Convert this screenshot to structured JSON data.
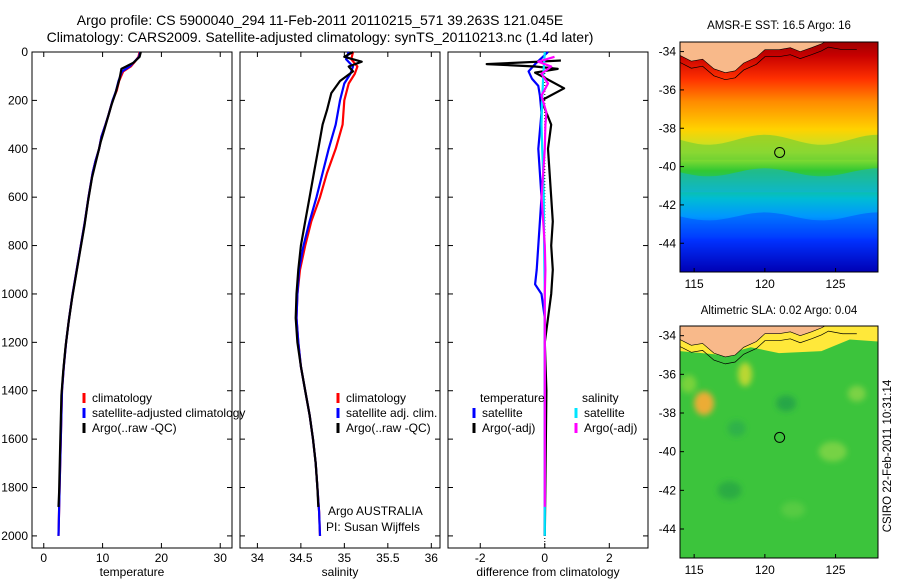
{
  "header": {
    "title_line1": "Argo profile: CS 5900040_294 11-Feb-2011 20110215_571 39.263S 121.045E",
    "title_line2": "Climatology: CARS2009. Satellite-adjusted climatology: synTS_20110213.nc (1.4d later)"
  },
  "footer": {
    "stamp": "CSIRO 22-Feb-2011 10:31:14"
  },
  "colors": {
    "climatology": "#ff0000",
    "satellite": "#0000ff",
    "argo": "#000000",
    "satellite_diff_salinity": "#00e5ff",
    "argo_adj_salinity": "#ff00ff",
    "land": "#f8b98a"
  },
  "chart_data": [
    {
      "type": "line",
      "id": "temperature",
      "xlabel": "temperature",
      "ylabel": "",
      "xlim": [
        -2,
        32
      ],
      "ylim": [
        0,
        2050
      ],
      "x_ticks": [
        0,
        10,
        20,
        30
      ],
      "y_ticks": [
        0,
        200,
        400,
        600,
        800,
        1000,
        1200,
        1400,
        1600,
        1800,
        2000
      ],
      "legend": [
        "climatology",
        "satellite-adjusted climatology",
        "Argo(..raw -QC)"
      ],
      "series": [
        {
          "name": "climatology",
          "color": "#ff0000",
          "points": [
            [
              16.3,
              0
            ],
            [
              16.1,
              20
            ],
            [
              15.5,
              40
            ],
            [
              14.8,
              60
            ],
            [
              13.5,
              80
            ],
            [
              12.8,
              120
            ],
            [
              12.4,
              160
            ],
            [
              11.7,
              200
            ],
            [
              11.0,
              260
            ],
            [
              10.5,
              300
            ],
            [
              9.8,
              350
            ],
            [
              9.4,
              400
            ],
            [
              8.8,
              450
            ],
            [
              8.3,
              500
            ],
            [
              7.6,
              600
            ],
            [
              7.0,
              700
            ],
            [
              6.3,
              800
            ],
            [
              5.6,
              900
            ],
            [
              4.9,
              1000
            ],
            [
              4.3,
              1100
            ],
            [
              3.8,
              1200
            ],
            [
              3.4,
              1300
            ],
            [
              3.1,
              1400
            ],
            [
              2.9,
              1600
            ],
            [
              2.7,
              1800
            ],
            [
              2.5,
              2000
            ]
          ]
        },
        {
          "name": "satellite-adjusted climatology",
          "color": "#0000ff",
          "points": [
            [
              16.4,
              0
            ],
            [
              16.2,
              20
            ],
            [
              15.4,
              40
            ],
            [
              14.6,
              60
            ],
            [
              13.3,
              80
            ],
            [
              12.7,
              120
            ],
            [
              12.3,
              160
            ],
            [
              11.7,
              200
            ],
            [
              11.0,
              260
            ],
            [
              10.5,
              300
            ],
            [
              9.8,
              350
            ],
            [
              9.4,
              400
            ],
            [
              8.8,
              450
            ],
            [
              8.3,
              500
            ],
            [
              7.6,
              600
            ],
            [
              7.0,
              700
            ],
            [
              6.3,
              800
            ],
            [
              5.6,
              900
            ],
            [
              4.9,
              1000
            ],
            [
              4.3,
              1100
            ],
            [
              3.8,
              1200
            ],
            [
              3.4,
              1300
            ],
            [
              3.1,
              1400
            ],
            [
              2.9,
              1600
            ],
            [
              2.7,
              1800
            ],
            [
              2.5,
              2000
            ]
          ]
        },
        {
          "name": "Argo(..raw -QC)",
          "color": "#000000",
          "points": [
            [
              16.5,
              0
            ],
            [
              16.3,
              20
            ],
            [
              15.2,
              45
            ],
            [
              14.0,
              60
            ],
            [
              13.2,
              70
            ],
            [
              12.9,
              110
            ],
            [
              12.2,
              170
            ],
            [
              11.5,
              220
            ],
            [
              10.9,
              270
            ],
            [
              10.3,
              320
            ],
            [
              9.7,
              370
            ],
            [
              9.2,
              420
            ],
            [
              8.7,
              470
            ],
            [
              8.2,
              520
            ],
            [
              7.5,
              620
            ],
            [
              6.9,
              720
            ],
            [
              6.2,
              820
            ],
            [
              5.5,
              920
            ],
            [
              4.8,
              1020
            ],
            [
              4.2,
              1120
            ],
            [
              3.7,
              1220
            ],
            [
              3.3,
              1320
            ],
            [
              3.0,
              1420
            ],
            [
              2.8,
              1620
            ],
            [
              2.6,
              1820
            ],
            [
              2.5,
              1880
            ]
          ]
        }
      ]
    },
    {
      "type": "line",
      "id": "salinity",
      "xlabel": "salinity",
      "xlim": [
        33.8,
        36.1
      ],
      "ylim": [
        0,
        2050
      ],
      "x_ticks": [
        34,
        34.5,
        35,
        35.5,
        36
      ],
      "legend": [
        "climatology",
        "satellite adj. clim.",
        "Argo(..raw -QC)"
      ],
      "annotation_line1": "Argo AUSTRALIA",
      "annotation_line2": "PI: Susan Wijffels",
      "series": [
        {
          "name": "climatology",
          "color": "#ff0000",
          "points": [
            [
              35.1,
              0
            ],
            [
              35.08,
              30
            ],
            [
              35.15,
              60
            ],
            [
              35.12,
              90
            ],
            [
              35.05,
              130
            ],
            [
              35.0,
              200
            ],
            [
              34.98,
              300
            ],
            [
              34.9,
              400
            ],
            [
              34.8,
              500
            ],
            [
              34.72,
              600
            ],
            [
              34.62,
              700
            ],
            [
              34.55,
              800
            ],
            [
              34.49,
              900
            ],
            [
              34.46,
              1000
            ],
            [
              34.45,
              1100
            ],
            [
              34.47,
              1200
            ],
            [
              34.5,
              1300
            ],
            [
              34.55,
              1400
            ],
            [
              34.6,
              1500
            ],
            [
              34.64,
              1600
            ],
            [
              34.67,
              1700
            ],
            [
              34.69,
              1800
            ],
            [
              34.71,
              1900
            ],
            [
              34.72,
              2000
            ]
          ]
        },
        {
          "name": "satellite adj. clim.",
          "color": "#0000ff",
          "points": [
            [
              35.05,
              0
            ],
            [
              35.02,
              30
            ],
            [
              35.1,
              60
            ],
            [
              35.07,
              90
            ],
            [
              35.0,
              130
            ],
            [
              34.95,
              200
            ],
            [
              34.9,
              300
            ],
            [
              34.82,
              400
            ],
            [
              34.75,
              500
            ],
            [
              34.68,
              600
            ],
            [
              34.6,
              700
            ],
            [
              34.53,
              800
            ],
            [
              34.48,
              900
            ],
            [
              34.46,
              1000
            ],
            [
              34.45,
              1100
            ],
            [
              34.47,
              1200
            ],
            [
              34.5,
              1300
            ],
            [
              34.55,
              1400
            ],
            [
              34.6,
              1500
            ],
            [
              34.64,
              1600
            ],
            [
              34.67,
              1700
            ],
            [
              34.69,
              1800
            ],
            [
              34.71,
              1900
            ],
            [
              34.72,
              2000
            ]
          ]
        },
        {
          "name": "Argo(..raw -QC)",
          "color": "#000000",
          "points": [
            [
              35.1,
              0
            ],
            [
              35.0,
              20
            ],
            [
              35.2,
              40
            ],
            [
              35.05,
              60
            ],
            [
              35.1,
              80
            ],
            [
              34.95,
              120
            ],
            [
              34.85,
              170
            ],
            [
              34.8,
              240
            ],
            [
              34.75,
              300
            ],
            [
              34.7,
              400
            ],
            [
              34.65,
              500
            ],
            [
              34.6,
              600
            ],
            [
              34.55,
              700
            ],
            [
              34.5,
              800
            ],
            [
              34.47,
              900
            ],
            [
              34.45,
              1000
            ],
            [
              34.44,
              1100
            ],
            [
              34.46,
              1200
            ],
            [
              34.5,
              1300
            ],
            [
              34.55,
              1400
            ],
            [
              34.6,
              1500
            ],
            [
              34.64,
              1600
            ],
            [
              34.67,
              1700
            ],
            [
              34.69,
              1800
            ],
            [
              34.7,
              1880
            ]
          ]
        }
      ]
    },
    {
      "type": "line",
      "id": "difference",
      "xlabel": "difference from climatology",
      "xlim": [
        -3,
        3.2
      ],
      "ylim": [
        0,
        2050
      ],
      "x_ticks": [
        -2,
        0,
        2
      ],
      "legend_temperature_heading": "temperature",
      "legend_temperature": [
        "satellite",
        "Argo(-adj)"
      ],
      "legend_salinity_heading": "salinity",
      "legend_salinity": [
        "satellite",
        "Argo(-adj)"
      ],
      "series": [
        {
          "name": "temperature satellite",
          "color": "#0000ff",
          "points": [
            [
              0.1,
              0
            ],
            [
              -0.3,
              50
            ],
            [
              -0.5,
              80
            ],
            [
              -0.4,
              110
            ],
            [
              -0.2,
              140
            ],
            [
              -0.15,
              180
            ],
            [
              -0.1,
              250
            ],
            [
              -0.2,
              400
            ],
            [
              -0.15,
              500
            ],
            [
              -0.1,
              600
            ],
            [
              -0.15,
              700
            ],
            [
              -0.2,
              800
            ],
            [
              -0.25,
              900
            ],
            [
              -0.3,
              960
            ],
            [
              -0.1,
              1000
            ],
            [
              0,
              1100
            ],
            [
              0,
              2000
            ]
          ]
        },
        {
          "name": "temperature Argo(-adj)",
          "color": "#000000",
          "points": [
            [
              0.5,
              35
            ],
            [
              -0.2,
              40
            ],
            [
              -1.8,
              50
            ],
            [
              -0.3,
              60
            ],
            [
              0.4,
              70
            ],
            [
              -0.3,
              85
            ],
            [
              0.6,
              150
            ],
            [
              -0.1,
              200
            ],
            [
              0.2,
              300
            ],
            [
              0.1,
              400
            ],
            [
              0.15,
              500
            ],
            [
              0.2,
              600
            ],
            [
              0.25,
              700
            ],
            [
              0.2,
              800
            ],
            [
              0.25,
              900
            ],
            [
              0.2,
              1000
            ],
            [
              0.1,
              1100
            ],
            [
              0,
              1200
            ],
            [
              0.05,
              1400
            ],
            [
              0,
              2000
            ]
          ]
        },
        {
          "name": "salinity satellite",
          "color": "#00e5ff",
          "points": [
            [
              0,
              0
            ],
            [
              -0.05,
              100
            ],
            [
              -0.08,
              200
            ],
            [
              -0.1,
              300
            ],
            [
              -0.08,
              400
            ],
            [
              -0.05,
              500
            ],
            [
              -0.03,
              600
            ],
            [
              -0.02,
              800
            ],
            [
              0,
              1000
            ],
            [
              0,
              1200
            ],
            [
              0,
              1400
            ],
            [
              0,
              1600
            ],
            [
              0,
              1800
            ],
            [
              0,
              2000
            ]
          ]
        },
        {
          "name": "salinity Argo(-adj)",
          "color": "#ff00ff",
          "points": [
            [
              0.3,
              20
            ],
            [
              -0.2,
              40
            ],
            [
              0.2,
              60
            ],
            [
              -0.1,
              90
            ],
            [
              0.1,
              130
            ],
            [
              -0.1,
              180
            ],
            [
              0.05,
              250
            ],
            [
              0.02,
              300
            ],
            [
              0,
              400
            ],
            [
              -0.05,
              500
            ],
            [
              -0.1,
              600
            ],
            [
              -0.05,
              700
            ],
            [
              0,
              800
            ],
            [
              0.02,
              900
            ],
            [
              0,
              1000
            ],
            [
              0,
              1200
            ],
            [
              0,
              1500
            ],
            [
              0,
              1880
            ]
          ]
        }
      ]
    },
    {
      "type": "heatmap",
      "id": "sst_map",
      "title": "AMSR-E SST: 16.5 Argo: 16",
      "x_ticks": [
        115,
        120,
        125
      ],
      "y_ticks": [
        -34,
        -36,
        -38,
        -40,
        -42,
        -44
      ],
      "xlim": [
        114,
        128
      ],
      "ylim": [
        -45.5,
        -33.5
      ],
      "argo_position": [
        121.045,
        -39.263
      ]
    },
    {
      "type": "heatmap",
      "id": "sla_map",
      "title": "Altimetric SLA: 0.02 Argo: 0.04",
      "x_ticks": [
        115,
        120,
        125
      ],
      "y_ticks": [
        -34,
        -36,
        -38,
        -40,
        -42,
        -44
      ],
      "xlim": [
        114,
        128
      ],
      "ylim": [
        -45.5,
        -33.5
      ],
      "argo_position": [
        121.045,
        -39.263
      ]
    }
  ]
}
